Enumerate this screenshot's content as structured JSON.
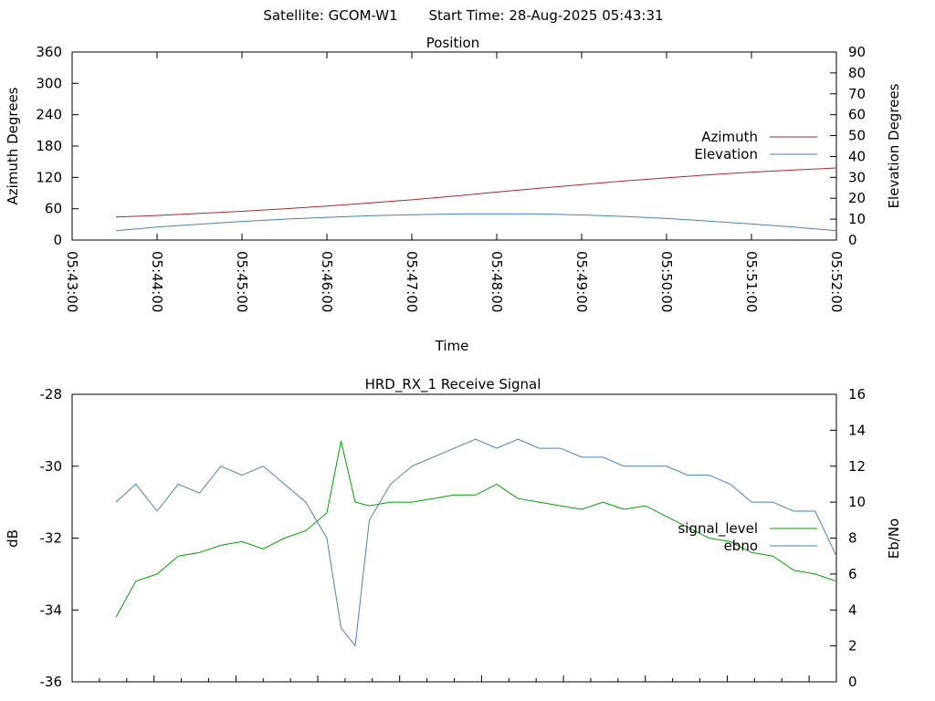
{
  "header": {
    "satellite": "Satellite: GCOM-W1",
    "start_time": "Start Time: 28-Aug-2025 05:43:31"
  },
  "chart_data": [
    {
      "type": "line",
      "title": "Position",
      "xlabel": "Time",
      "ylabel": "Azimuth Degrees",
      "y2label": "Elevation Degrees",
      "x_ticks": [
        "05:43:00",
        "05:44:00",
        "05:45:00",
        "05:46:00",
        "05:47:00",
        "05:48:00",
        "05:49:00",
        "05:50:00",
        "05:51:00",
        "05:52:00"
      ],
      "xlim": [
        "05:43:00",
        "05:52:00"
      ],
      "ylim": [
        0,
        360
      ],
      "y_ticks": [
        0,
        60,
        120,
        180,
        240,
        300,
        360
      ],
      "y2lim": [
        0,
        90
      ],
      "y2_ticks": [
        0,
        10,
        20,
        30,
        40,
        50,
        60,
        70,
        80,
        90
      ],
      "grid": false,
      "legend_position": "right",
      "series": [
        {
          "name": "Azimuth",
          "axis": "y",
          "color": "#a52a2a",
          "x": [
            "05:43:31",
            "05:44:00",
            "05:44:30",
            "05:45:00",
            "05:45:30",
            "05:46:00",
            "05:46:30",
            "05:47:00",
            "05:47:30",
            "05:48:00",
            "05:48:30",
            "05:49:00",
            "05:49:30",
            "05:50:00",
            "05:50:30",
            "05:51:00",
            "05:51:30",
            "05:52:00"
          ],
          "y": [
            44,
            47,
            51,
            55,
            60,
            65,
            71,
            77,
            84,
            92,
            99,
            106,
            113,
            119,
            125,
            130,
            134,
            138
          ]
        },
        {
          "name": "Elevation",
          "axis": "y2",
          "color": "#4682b4",
          "x": [
            "05:43:31",
            "05:44:00",
            "05:44:30",
            "05:45:00",
            "05:45:30",
            "05:46:00",
            "05:46:30",
            "05:47:00",
            "05:47:30",
            "05:48:00",
            "05:48:30",
            "05:49:00",
            "05:49:30",
            "05:50:00",
            "05:50:30",
            "05:51:00",
            "05:51:30",
            "05:52:00"
          ],
          "y": [
            4.5,
            6.2,
            7.6,
            8.9,
            10.0,
            10.9,
            11.6,
            12.1,
            12.5,
            12.6,
            12.5,
            12.0,
            11.3,
            10.3,
            9.1,
            7.7,
            6.2,
            4.5
          ]
        }
      ]
    },
    {
      "type": "line",
      "title": "HRD_RX_1 Receive Signal",
      "xlabel": "",
      "ylabel": "dB",
      "y2label": "Eb/No",
      "x_ticks_count": 28,
      "xlim": [
        "05:43:00",
        "05:52:00"
      ],
      "ylim": [
        -36,
        -28
      ],
      "y_ticks": [
        -28,
        -30,
        -32,
        -34,
        -36
      ],
      "y2lim": [
        0,
        16
      ],
      "y2_ticks": [
        0,
        2,
        4,
        6,
        8,
        10,
        12,
        14,
        16
      ],
      "grid": false,
      "legend_position": "right",
      "series": [
        {
          "name": "signal_level",
          "axis": "y",
          "color": "#00a000",
          "x": [
            "05:43:31",
            "05:43:45",
            "05:44:00",
            "05:44:15",
            "05:44:30",
            "05:44:45",
            "05:45:00",
            "05:45:15",
            "05:45:30",
            "05:45:45",
            "05:46:00",
            "05:46:10",
            "05:46:20",
            "05:46:30",
            "05:46:45",
            "05:47:00",
            "05:47:15",
            "05:47:30",
            "05:47:45",
            "05:48:00",
            "05:48:15",
            "05:48:30",
            "05:48:45",
            "05:49:00",
            "05:49:15",
            "05:49:30",
            "05:49:45",
            "05:50:00",
            "05:50:15",
            "05:50:30",
            "05:50:45",
            "05:51:00",
            "05:51:15",
            "05:51:30",
            "05:51:45",
            "05:52:00"
          ],
          "y": [
            -34.2,
            -33.2,
            -33.0,
            -32.5,
            -32.4,
            -32.2,
            -32.1,
            -32.3,
            -32.0,
            -31.8,
            -31.3,
            -29.3,
            -31.0,
            -31.1,
            -31.0,
            -31.0,
            -30.9,
            -30.8,
            -30.8,
            -30.5,
            -30.9,
            -31.0,
            -31.1,
            -31.2,
            -31.0,
            -31.2,
            -31.1,
            -31.4,
            -31.7,
            -32.0,
            -32.1,
            -32.4,
            -32.5,
            -32.9,
            -33.0,
            -33.2
          ]
        },
        {
          "name": "ebno",
          "axis": "y2",
          "color": "#4682b4",
          "x": [
            "05:43:31",
            "05:43:45",
            "05:44:00",
            "05:44:15",
            "05:44:30",
            "05:44:45",
            "05:45:00",
            "05:45:15",
            "05:45:30",
            "05:45:45",
            "05:46:00",
            "05:46:10",
            "05:46:20",
            "05:46:30",
            "05:46:45",
            "05:47:00",
            "05:47:15",
            "05:47:30",
            "05:47:45",
            "05:48:00",
            "05:48:15",
            "05:48:30",
            "05:48:45",
            "05:49:00",
            "05:49:15",
            "05:49:30",
            "05:49:45",
            "05:50:00",
            "05:50:15",
            "05:50:30",
            "05:50:45",
            "05:51:00",
            "05:51:15",
            "05:51:30",
            "05:51:45",
            "05:52:00"
          ],
          "y": [
            10,
            11,
            9.5,
            11,
            10.5,
            12,
            11.5,
            12,
            11,
            10,
            8,
            3,
            2,
            9,
            11,
            12,
            12.5,
            13,
            13.5,
            13,
            13.5,
            13,
            13,
            12.5,
            12.5,
            12,
            12,
            12,
            11.5,
            11.5,
            11,
            10,
            10,
            9.5,
            9.5,
            7
          ]
        }
      ]
    }
  ]
}
